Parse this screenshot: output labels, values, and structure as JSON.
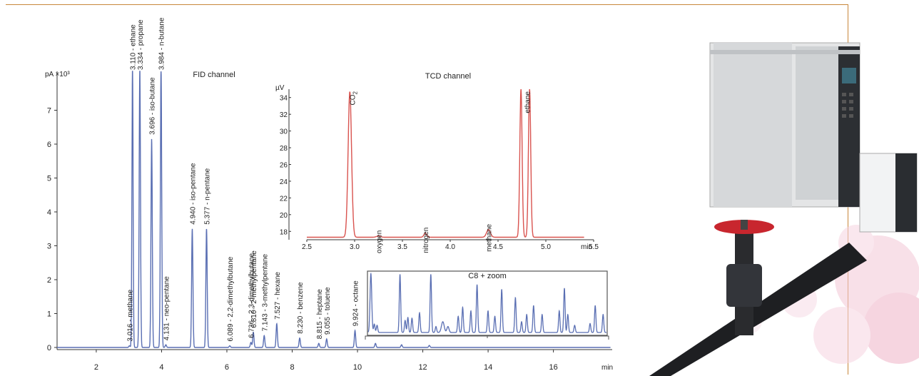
{
  "chart_data": [
    {
      "type": "line",
      "title": "FID channel",
      "ylabel": "pA ×10³",
      "xlabel": "min",
      "xlim": [
        0.8,
        17.8
      ],
      "ylim": [
        -0.2,
        8.0
      ],
      "x_ticks": [
        2,
        4,
        6,
        8,
        10,
        12,
        14,
        16
      ],
      "y_ticks": [
        0,
        1,
        2,
        3,
        4,
        5,
        6,
        7
      ],
      "peaks": [
        {
          "t": 3.016,
          "h": 0.05,
          "w": 0.02
        },
        {
          "t": 3.11,
          "h": 8.2,
          "w": 0.018
        },
        {
          "t": 3.334,
          "h": 8.2,
          "w": 0.02
        },
        {
          "t": 3.696,
          "h": 6.15,
          "w": 0.02
        },
        {
          "t": 3.984,
          "h": 8.2,
          "w": 0.02
        },
        {
          "t": 4.131,
          "h": 0.08,
          "w": 0.02
        },
        {
          "t": 4.94,
          "h": 3.5,
          "w": 0.02
        },
        {
          "t": 5.377,
          "h": 3.5,
          "w": 0.02
        },
        {
          "t": 6.089,
          "h": 0.05,
          "w": 0.02
        },
        {
          "t": 6.736,
          "h": 0.15,
          "w": 0.02
        },
        {
          "t": 6.81,
          "h": 0.45,
          "w": 0.02
        },
        {
          "t": 7.143,
          "h": 0.35,
          "w": 0.02
        },
        {
          "t": 7.527,
          "h": 0.7,
          "w": 0.02
        },
        {
          "t": 8.23,
          "h": 0.28,
          "w": 0.02
        },
        {
          "t": 8.815,
          "h": 0.12,
          "w": 0.02
        },
        {
          "t": 9.055,
          "h": 0.25,
          "w": 0.02
        },
        {
          "t": 9.924,
          "h": 0.5,
          "w": 0.02
        },
        {
          "t": 10.55,
          "h": 0.12,
          "w": 0.02
        },
        {
          "t": 11.35,
          "h": 0.08,
          "w": 0.02
        },
        {
          "t": 12.2,
          "h": 0.06,
          "w": 0.02
        }
      ],
      "peak_labels": [
        {
          "t": 3.016,
          "label": "3.016 - methane"
        },
        {
          "t": 3.11,
          "label": "3.110 - ethane"
        },
        {
          "t": 3.334,
          "label": "3.334 - propane"
        },
        {
          "t": 3.696,
          "label": "3.696 - iso-butane"
        },
        {
          "t": 3.984,
          "label": "3.984 - n-butane"
        },
        {
          "t": 4.131,
          "label": "4.131 - neo-pentane"
        },
        {
          "t": 4.94,
          "label": "4.940 - iso-pentane"
        },
        {
          "t": 5.377,
          "label": "5.377 - n-pentane"
        },
        {
          "t": 6.089,
          "label": "6.089 - 2,2-dimethylbutane"
        },
        {
          "t": 6.736,
          "label": "6.736 - 2,3-dimethylbutane"
        },
        {
          "t": 6.81,
          "label": "6.810 - 2-methylpentane"
        },
        {
          "t": 7.143,
          "label": "7.143 - 3-methylpentane"
        },
        {
          "t": 7.527,
          "label": "7.527 - hexane"
        },
        {
          "t": 8.23,
          "label": "8.230 - benzene"
        },
        {
          "t": 8.815,
          "label": "8.815 - heptane"
        },
        {
          "t": 9.055,
          "label": "9.055 - toluene"
        },
        {
          "t": 9.924,
          "label": "9.924 - octane"
        }
      ]
    },
    {
      "type": "line",
      "title": "TCD channel",
      "ylabel": "µV",
      "xlabel": "min",
      "xlim": [
        2.5,
        5.5
      ],
      "ylim": [
        17,
        35
      ],
      "x_ticks": [
        2.5,
        3.0,
        3.5,
        4.0,
        4.5,
        5.0,
        5.5
      ],
      "x_tick_labels": [
        "2.5",
        "3.0",
        "3.5",
        "4.0",
        "4.5",
        "5.0",
        "5.5"
      ],
      "y_ticks": [
        18,
        20,
        22,
        24,
        26,
        28,
        30,
        32,
        34
      ],
      "baseline": 17.3,
      "peaks": [
        {
          "t": 2.95,
          "h": 17.4,
          "w": 0.018
        },
        {
          "t": 3.25,
          "h": 0.15,
          "w": 0.02
        },
        {
          "t": 3.74,
          "h": 0.5,
          "w": 0.015
        },
        {
          "t": 4.4,
          "h": 0.9,
          "w": 0.02
        },
        {
          "t": 4.74,
          "h": 17.7,
          "w": 0.012
        },
        {
          "t": 4.83,
          "h": 17.7,
          "w": 0.012
        }
      ],
      "peak_labels": [
        {
          "t": 2.95,
          "label": "CO",
          "sub": "2"
        },
        {
          "t": 3.25,
          "label": "oxygen"
        },
        {
          "t": 3.74,
          "label": "nitrogen"
        },
        {
          "t": 4.4,
          "label": "methane"
        },
        {
          "t": 4.78,
          "label": "ethane"
        }
      ]
    },
    {
      "type": "line",
      "title": "C8 + zoom",
      "xlim": [
        10.4,
        17.4
      ],
      "ylim": [
        0,
        1
      ],
      "peaks": [
        {
          "t": 10.5,
          "h": 0.98,
          "w": 0.025
        },
        {
          "t": 10.6,
          "h": 0.14,
          "w": 0.02
        },
        {
          "t": 10.68,
          "h": 0.12,
          "w": 0.02
        },
        {
          "t": 11.35,
          "h": 0.97,
          "w": 0.02
        },
        {
          "t": 11.5,
          "h": 0.2,
          "w": 0.02
        },
        {
          "t": 11.58,
          "h": 0.25,
          "w": 0.02
        },
        {
          "t": 11.7,
          "h": 0.24,
          "w": 0.02
        },
        {
          "t": 11.92,
          "h": 0.33,
          "w": 0.02
        },
        {
          "t": 12.25,
          "h": 0.97,
          "w": 0.02
        },
        {
          "t": 12.4,
          "h": 0.1,
          "w": 0.02
        },
        {
          "t": 12.6,
          "h": 0.18,
          "w": 0.04
        },
        {
          "t": 12.75,
          "h": 0.1,
          "w": 0.03
        },
        {
          "t": 13.05,
          "h": 0.27,
          "w": 0.02
        },
        {
          "t": 13.18,
          "h": 0.42,
          "w": 0.02
        },
        {
          "t": 13.42,
          "h": 0.36,
          "w": 0.02
        },
        {
          "t": 13.6,
          "h": 0.8,
          "w": 0.02
        },
        {
          "t": 13.92,
          "h": 0.36,
          "w": 0.02
        },
        {
          "t": 14.12,
          "h": 0.27,
          "w": 0.02
        },
        {
          "t": 14.32,
          "h": 0.72,
          "w": 0.02
        },
        {
          "t": 14.72,
          "h": 0.58,
          "w": 0.02
        },
        {
          "t": 14.9,
          "h": 0.18,
          "w": 0.02
        },
        {
          "t": 15.05,
          "h": 0.3,
          "w": 0.02
        },
        {
          "t": 15.25,
          "h": 0.45,
          "w": 0.02
        },
        {
          "t": 15.5,
          "h": 0.3,
          "w": 0.02
        },
        {
          "t": 16.0,
          "h": 0.36,
          "w": 0.02
        },
        {
          "t": 16.15,
          "h": 0.74,
          "w": 0.02
        },
        {
          "t": 16.25,
          "h": 0.3,
          "w": 0.02
        },
        {
          "t": 16.45,
          "h": 0.12,
          "w": 0.02
        },
        {
          "t": 16.9,
          "h": 0.15,
          "w": 0.02
        },
        {
          "t": 17.05,
          "h": 0.45,
          "w": 0.02
        },
        {
          "t": 17.28,
          "h": 0.3,
          "w": 0.02
        }
      ]
    }
  ],
  "colors": {
    "fid_line": "#5a6fb3",
    "tcd_line": "#d9534f",
    "frame": "#c8873a",
    "zoom_box": "#555555",
    "axis": "#333333"
  },
  "photo_icons": [
    "gas-chromatograph-icon",
    "detector-module-icon",
    "pipeline-valve-icon"
  ]
}
